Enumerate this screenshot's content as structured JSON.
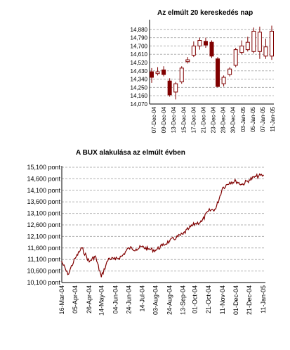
{
  "chart_data": [
    {
      "type": "candlestick",
      "title": "Az elmúlt 20 kereskedés nap",
      "xlabel": "",
      "ylabel": "",
      "ylim": [
        14070,
        14970
      ],
      "y_ticks": [
        "14,880",
        "14,790",
        "14,700",
        "14,610",
        "14,520",
        "14,430",
        "14,340",
        "14,250",
        "14,160",
        "14,070"
      ],
      "y_tick_values": [
        14880,
        14790,
        14700,
        14610,
        14520,
        14430,
        14340,
        14250,
        14160,
        14070
      ],
      "x_tick_labels": [
        "07-Dec-04",
        "09-Dec-04",
        "13-Dec-04",
        "15-Dec-04",
        "17-Dec-04",
        "21-Dec-04",
        "23-Dec-04",
        "28-Dec-04",
        "30-Dec-04",
        "03-Jan-05",
        "05-Jan-05",
        "07-Jan-05",
        "11-Jan-05"
      ],
      "grid": true,
      "colors": {
        "up": "#ffffff",
        "down": "#800000",
        "outline": "#800000"
      },
      "candles": [
        {
          "open": 14420,
          "close": 14360,
          "high": 14460,
          "low": 14300
        },
        {
          "open": 14400,
          "close": 14420,
          "high": 14470,
          "low": 14380
        },
        {
          "open": 14440,
          "close": 14390,
          "high": 14480,
          "low": 14370
        },
        {
          "open": 14320,
          "close": 14170,
          "high": 14350,
          "low": 14150
        },
        {
          "open": 14200,
          "close": 14290,
          "high": 14310,
          "low": 14120
        },
        {
          "open": 14310,
          "close": 14460,
          "high": 14480,
          "low": 14290
        },
        {
          "open": 14530,
          "close": 14550,
          "high": 14580,
          "low": 14510
        },
        {
          "open": 14600,
          "close": 14700,
          "high": 14750,
          "low": 14580
        },
        {
          "open": 14700,
          "close": 14760,
          "high": 14790,
          "low": 14660
        },
        {
          "open": 14750,
          "close": 14710,
          "high": 14790,
          "low": 14680
        },
        {
          "open": 14740,
          "close": 14590,
          "high": 14760,
          "low": 14570
        },
        {
          "open": 14560,
          "close": 14260,
          "high": 14580,
          "low": 14250
        },
        {
          "open": 14290,
          "close": 14360,
          "high": 14380,
          "low": 14260
        },
        {
          "open": 14390,
          "close": 14450,
          "high": 14470,
          "low": 14370
        },
        {
          "open": 14490,
          "close": 14660,
          "high": 14680,
          "low": 14470
        },
        {
          "open": 14630,
          "close": 14700,
          "high": 14760,
          "low": 14610
        },
        {
          "open": 14660,
          "close": 14740,
          "high": 14800,
          "low": 14640
        },
        {
          "open": 14640,
          "close": 14860,
          "high": 14900,
          "low": 14620
        },
        {
          "open": 14640,
          "close": 14850,
          "high": 14910,
          "low": 14560
        },
        {
          "open": 14590,
          "close": 14690,
          "high": 14780,
          "low": 14560
        },
        {
          "open": 14590,
          "close": 14860,
          "high": 14920,
          "low": 14550
        }
      ]
    },
    {
      "type": "line",
      "title": "A BUX alakulása az elmúlt évben",
      "xlabel": "",
      "ylabel": "",
      "ylim": [
        10100,
        15100
      ],
      "y_ticks": [
        "15,100 pont",
        "14,600 pont",
        "14,100 pont",
        "13,600 pont",
        "13,100 pont",
        "12,600 pont",
        "12,100 pont",
        "11,600 pont",
        "11,100 pont",
        "10,600 pont",
        "10,100 pont"
      ],
      "y_tick_values": [
        15100,
        14600,
        14100,
        13600,
        13100,
        12600,
        12100,
        11600,
        11100,
        10600,
        10100
      ],
      "x_tick_labels": [
        "16-Mar-04",
        "05-Apr-04",
        "26-Apr-04",
        "14-May-04",
        "04-Jun-04",
        "24-Jun-04",
        "14-Jul-04",
        "03-Aug-04",
        "24-Aug-04",
        "13-Sep-04",
        "01-Oct-04",
        "21-Oct-04",
        "11-Nov-04",
        "01-Dec-04",
        "21-Dec-04",
        "11-Jan-05"
      ],
      "grid": true,
      "colors": {
        "line": "#800000"
      },
      "series": [
        {
          "name": "",
          "x": [
            "16-Mar-04",
            "25-Mar-04",
            "05-Apr-04",
            "15-Apr-04",
            "26-Apr-04",
            "05-May-04",
            "14-May-04",
            "25-May-04",
            "04-Jun-04",
            "14-Jun-04",
            "24-Jun-04",
            "05-Jul-04",
            "14-Jul-04",
            "23-Jul-04",
            "03-Aug-04",
            "13-Aug-04",
            "24-Aug-04",
            "03-Sep-04",
            "13-Sep-04",
            "22-Sep-04",
            "01-Oct-04",
            "11-Oct-04",
            "21-Oct-04",
            "01-Nov-04",
            "11-Nov-04",
            "22-Nov-04",
            "01-Dec-04",
            "10-Dec-04",
            "21-Dec-04",
            "31-Dec-04",
            "11-Jan-05"
          ],
          "values": [
            11000,
            10450,
            11150,
            11600,
            11000,
            11250,
            10350,
            11150,
            11100,
            11250,
            11600,
            11550,
            11650,
            11550,
            11500,
            11700,
            11900,
            12050,
            12200,
            12450,
            12650,
            12750,
            13200,
            13300,
            14200,
            14450,
            14500,
            14350,
            14550,
            14700,
            14750
          ]
        }
      ]
    }
  ]
}
